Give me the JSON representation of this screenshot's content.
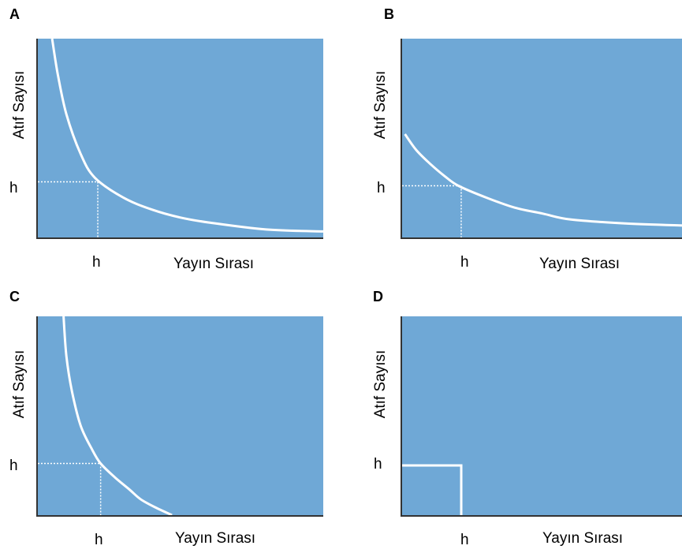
{
  "chart_data": [
    {
      "panel": "A",
      "type": "line",
      "ylabel": "Atıf Sayısı",
      "xlabel": "Yayın Sırası",
      "h_tick_y": "h",
      "h_tick_x": "h",
      "series": [
        {
          "x": [
            0.05,
            0.07,
            0.1,
            0.15,
            0.2,
            0.3,
            0.4,
            0.5,
            0.6,
            0.8,
            1.0
          ],
          "y": [
            1.0,
            0.82,
            0.62,
            0.42,
            0.3,
            0.2,
            0.14,
            0.1,
            0.075,
            0.04,
            0.03
          ]
        }
      ],
      "h_point": [
        0.21,
        0.28
      ],
      "xlim": [
        0,
        1
      ],
      "ylim": [
        0,
        1
      ],
      "line_color": "#ffffff",
      "plot_color": "#6fa8d6"
    },
    {
      "panel": "B",
      "type": "line",
      "ylabel": "Atıf Sayısı",
      "xlabel": "Yayın Sırası",
      "h_tick_y": "h",
      "h_tick_x": "h",
      "series": [
        {
          "x": [
            0.01,
            0.05,
            0.1,
            0.15,
            0.2,
            0.3,
            0.4,
            0.5,
            0.6,
            0.8,
            1.0
          ],
          "y": [
            0.52,
            0.44,
            0.37,
            0.31,
            0.26,
            0.2,
            0.15,
            0.12,
            0.09,
            0.07,
            0.06
          ]
        }
      ],
      "h_point": [
        0.21,
        0.26
      ],
      "xlim": [
        0,
        1
      ],
      "ylim": [
        0,
        1
      ],
      "line_color": "#ffffff",
      "plot_color": "#6fa8d6"
    },
    {
      "panel": "C",
      "type": "line",
      "ylabel": "Atıf Sayısı",
      "xlabel": "Yayın Sırası",
      "h_tick_y": "h",
      "h_tick_x": "h",
      "series": [
        {
          "x": [
            0.09,
            0.1,
            0.12,
            0.15,
            0.19,
            0.22,
            0.27,
            0.32,
            0.36,
            0.41,
            0.47
          ],
          "y": [
            1.0,
            0.8,
            0.62,
            0.45,
            0.33,
            0.26,
            0.19,
            0.13,
            0.08,
            0.04,
            0.0
          ]
        }
      ],
      "h_point": [
        0.22,
        0.26
      ],
      "xlim": [
        0,
        1
      ],
      "ylim": [
        0,
        1
      ],
      "line_color": "#ffffff",
      "plot_color": "#6fa8d6"
    },
    {
      "panel": "D",
      "type": "line",
      "ylabel": "Atıf Sayısı",
      "xlabel": "Yayın Sırası",
      "h_tick_y": "h",
      "h_tick_x": "h",
      "series": [
        {
          "x": [
            0.0,
            0.21,
            0.21
          ],
          "y": [
            0.25,
            0.25,
            0.0
          ]
        }
      ],
      "h_point": [
        0.21,
        0.25
      ],
      "xlim": [
        0,
        1
      ],
      "ylim": [
        0,
        1
      ],
      "line_color": "#ffffff",
      "plot_color": "#6fa8d6"
    }
  ]
}
